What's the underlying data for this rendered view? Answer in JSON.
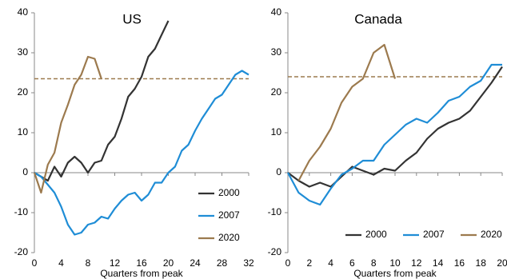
{
  "chart_data": [
    {
      "type": "line",
      "title": "US",
      "x_label": "Quarters from peak",
      "x": [
        0,
        1,
        2,
        3,
        4,
        5,
        6,
        7,
        8,
        9,
        10,
        11,
        12,
        13,
        14,
        15,
        16,
        17,
        18,
        19,
        20,
        21,
        22,
        23,
        24,
        25,
        26,
        27,
        28,
        29,
        30,
        31,
        32
      ],
      "series": [
        {
          "name": "2000",
          "color": "#333333",
          "values": [
            0,
            -1,
            -2,
            1.5,
            -1,
            2.5,
            4,
            2.5,
            0,
            2.5,
            3,
            7,
            9,
            13.5,
            19,
            21,
            24,
            29,
            31,
            34.5,
            38,
            null,
            null,
            null,
            null,
            null,
            null,
            null,
            null,
            null,
            null,
            null,
            null
          ]
        },
        {
          "name": "2007",
          "color": "#1f8dd6",
          "values": [
            0,
            -1,
            -3,
            -5,
            -8.5,
            -13,
            -15.5,
            -15,
            -13,
            -12.5,
            -11,
            -11.5,
            -9,
            -7,
            -5.5,
            -5,
            -7,
            -5.5,
            -2.5,
            -2.5,
            0,
            1.5,
            5.5,
            7,
            10.5,
            13.5,
            16,
            18.5,
            19.5,
            22,
            24.5,
            25.5,
            24.5
          ]
        },
        {
          "name": "2020",
          "color": "#9c7a4e",
          "values": [
            0,
            -5,
            2,
            5,
            12.5,
            17,
            22,
            24.5,
            29,
            28.5,
            23.5,
            null,
            null,
            null,
            null,
            null,
            null,
            null,
            null,
            null,
            null,
            null,
            null,
            null,
            null,
            null,
            null,
            null,
            null,
            null,
            null,
            null,
            null
          ]
        }
      ],
      "reference_line": 23.5,
      "reference_color": "#9c7a4e",
      "xlim": [
        0,
        32
      ],
      "xticks": [
        0,
        4,
        8,
        12,
        16,
        20,
        24,
        28,
        32
      ],
      "ylim": [
        -20,
        40
      ],
      "yticks": [
        -20,
        -10,
        0,
        10,
        20,
        30,
        40
      ],
      "legend": "lower right"
    },
    {
      "type": "line",
      "title": "Canada",
      "x_label": "Quarters from peak",
      "x": [
        0,
        1,
        2,
        3,
        4,
        5,
        6,
        7,
        8,
        9,
        10,
        11,
        12,
        13,
        14,
        15,
        16,
        17,
        18,
        19,
        20
      ],
      "series": [
        {
          "name": "2000",
          "color": "#333333",
          "values": [
            0,
            -2,
            -3.5,
            -2.5,
            -3.5,
            -1,
            1.5,
            0.5,
            -0.5,
            1,
            0.5,
            3,
            5,
            8.5,
            11,
            12.5,
            13.5,
            15.5,
            19,
            22.5,
            26.5
          ]
        },
        {
          "name": "2007",
          "color": "#1f8dd6",
          "values": [
            0,
            -5,
            -7,
            -8,
            -4,
            -0.5,
            1,
            3,
            3,
            7,
            9.5,
            12,
            13.5,
            12.5,
            15,
            18,
            19,
            21.5,
            23,
            27,
            27
          ]
        },
        {
          "name": "2020",
          "color": "#9c7a4e",
          "values": [
            null,
            -2,
            3,
            6.5,
            11,
            17.5,
            21.5,
            23.5,
            30,
            32,
            23.5,
            null,
            null,
            null,
            null,
            null,
            null,
            null,
            null,
            null,
            null
          ]
        }
      ],
      "reference_line": 24,
      "reference_color": "#9c7a4e",
      "xlim": [
        0,
        20
      ],
      "xticks": [
        0,
        2,
        4,
        6,
        8,
        10,
        12,
        14,
        16,
        18,
        20
      ],
      "ylim": [
        -20,
        40
      ],
      "yticks": [
        -20,
        -10,
        0,
        10,
        20,
        30,
        40
      ],
      "legend": "bottom"
    }
  ]
}
